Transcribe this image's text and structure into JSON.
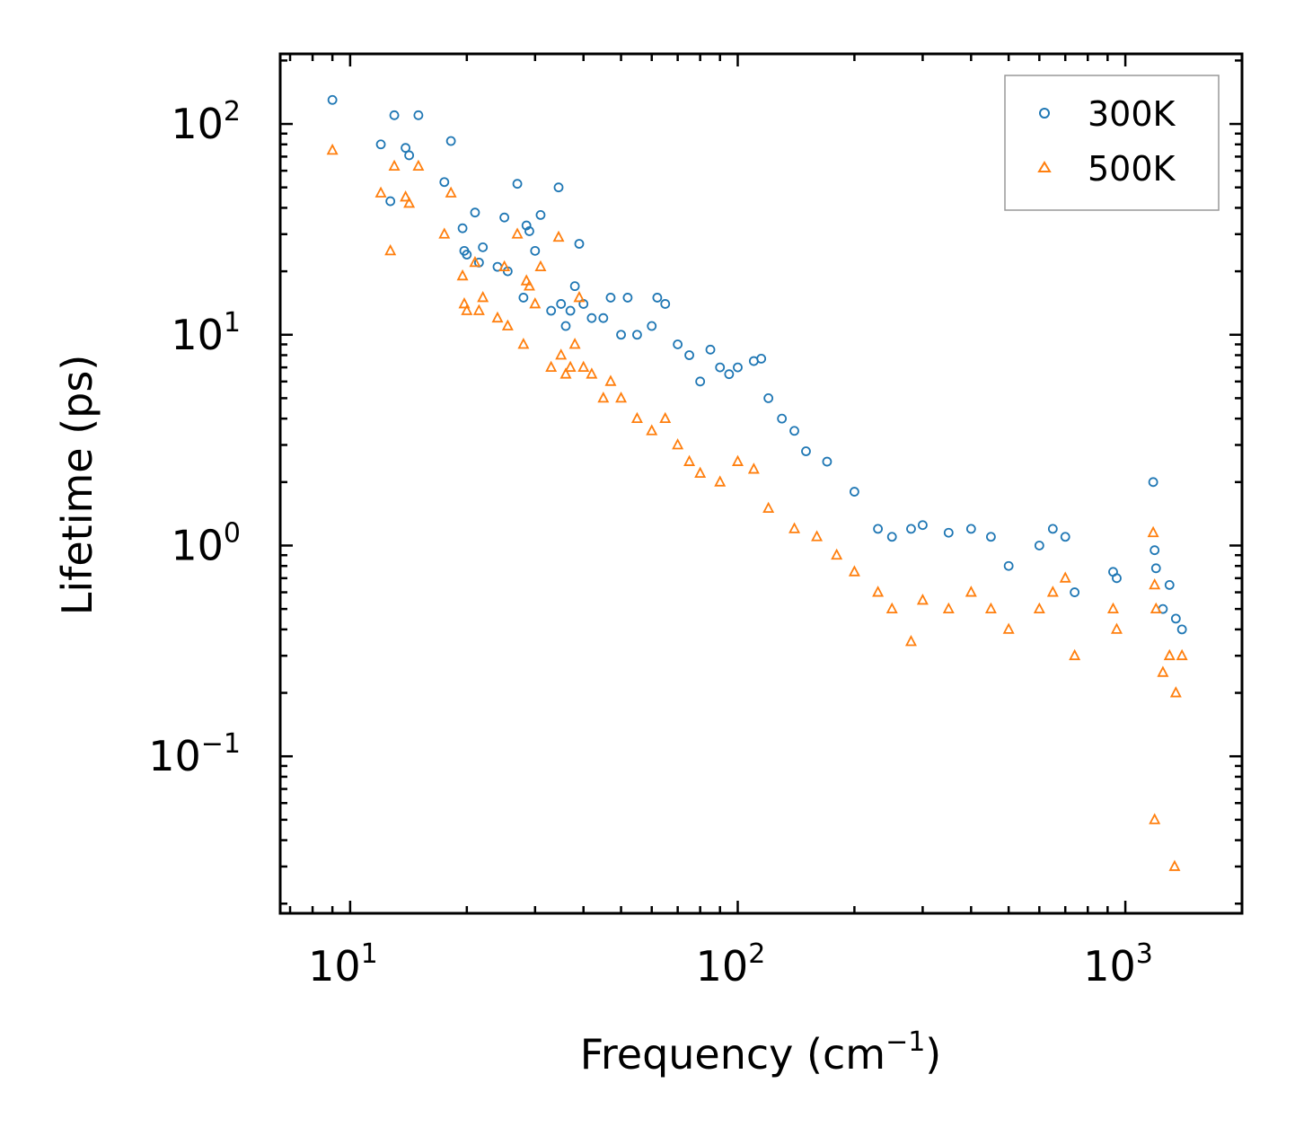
{
  "chart_data": {
    "type": "scatter",
    "xscale": "log",
    "yscale": "log",
    "xlabel": "Frequency (cm",
    "xlabel_sup": "−1",
    "xlabel_close": ")",
    "ylabel": "Lifetime (ps)",
    "xlim": [
      6.6,
      2000
    ],
    "ylim": [
      0.018,
      215
    ],
    "legend_position": "top-right",
    "xticks": [
      {
        "base": "10",
        "exp": "1",
        "value": 10
      },
      {
        "base": "10",
        "exp": "2",
        "value": 100
      },
      {
        "base": "10",
        "exp": "3",
        "value": 1000
      }
    ],
    "yticks": [
      {
        "base": "10",
        "exp": "2",
        "value": 100
      },
      {
        "base": "10",
        "exp": "1",
        "value": 10
      },
      {
        "base": "10",
        "exp": "0",
        "value": 1
      },
      {
        "base": "10",
        "exp": "−1",
        "value": 0.1
      }
    ],
    "series": [
      {
        "name": "300K",
        "color": "#1f77b4",
        "marker": "circle",
        "points": [
          [
            9,
            130
          ],
          [
            12,
            80
          ],
          [
            12.7,
            43
          ],
          [
            13,
            110
          ],
          [
            13.9,
            77
          ],
          [
            14.2,
            71
          ],
          [
            15,
            110
          ],
          [
            17.5,
            53
          ],
          [
            18.2,
            83
          ],
          [
            19.5,
            32
          ],
          [
            19.7,
            25
          ],
          [
            20,
            24
          ],
          [
            21,
            38
          ],
          [
            21.5,
            22
          ],
          [
            22,
            26
          ],
          [
            24,
            21
          ],
          [
            25,
            36
          ],
          [
            25.5,
            20
          ],
          [
            27,
            52
          ],
          [
            28,
            15
          ],
          [
            28.5,
            33
          ],
          [
            29,
            31
          ],
          [
            30,
            25
          ],
          [
            31,
            37
          ],
          [
            33,
            13
          ],
          [
            34.5,
            50
          ],
          [
            35,
            14
          ],
          [
            36,
            11
          ],
          [
            37,
            13
          ],
          [
            38,
            17
          ],
          [
            39,
            27
          ],
          [
            40,
            14
          ],
          [
            42,
            12
          ],
          [
            45,
            12
          ],
          [
            47,
            15
          ],
          [
            50,
            10
          ],
          [
            52,
            15
          ],
          [
            55,
            10
          ],
          [
            60,
            11
          ],
          [
            62,
            15
          ],
          [
            65,
            14
          ],
          [
            70,
            9
          ],
          [
            75,
            8
          ],
          [
            80,
            6
          ],
          [
            85,
            8.5
          ],
          [
            90,
            7
          ],
          [
            95,
            6.5
          ],
          [
            100,
            7
          ],
          [
            110,
            7.5
          ],
          [
            115,
            7.7
          ],
          [
            120,
            5
          ],
          [
            130,
            4
          ],
          [
            140,
            3.5
          ],
          [
            150,
            2.8
          ],
          [
            170,
            2.5
          ],
          [
            200,
            1.8
          ],
          [
            230,
            1.2
          ],
          [
            250,
            1.1
          ],
          [
            280,
            1.2
          ],
          [
            300,
            1.25
          ],
          [
            350,
            1.15
          ],
          [
            400,
            1.2
          ],
          [
            450,
            1.1
          ],
          [
            500,
            0.8
          ],
          [
            600,
            1.0
          ],
          [
            650,
            1.2
          ],
          [
            700,
            1.1
          ],
          [
            740,
            0.6
          ],
          [
            930,
            0.75
          ],
          [
            950,
            0.7
          ],
          [
            1180,
            2.0
          ],
          [
            1190,
            0.95
          ],
          [
            1200,
            0.78
          ],
          [
            1250,
            0.5
          ],
          [
            1300,
            0.65
          ],
          [
            1350,
            0.45
          ],
          [
            1400,
            0.4
          ]
        ]
      },
      {
        "name": "500K",
        "color": "#ff7f0e",
        "marker": "triangle",
        "points": [
          [
            9,
            75
          ],
          [
            12,
            47
          ],
          [
            12.7,
            25
          ],
          [
            13,
            63
          ],
          [
            13.9,
            45
          ],
          [
            14.2,
            42
          ],
          [
            15,
            63
          ],
          [
            17.5,
            30
          ],
          [
            18.2,
            47
          ],
          [
            19.5,
            19
          ],
          [
            19.7,
            14
          ],
          [
            20,
            13
          ],
          [
            21,
            22
          ],
          [
            21.5,
            13
          ],
          [
            22,
            15
          ],
          [
            24,
            12
          ],
          [
            25,
            21
          ],
          [
            25.5,
            11
          ],
          [
            27,
            30
          ],
          [
            28,
            9
          ],
          [
            28.5,
            18
          ],
          [
            29,
            17
          ],
          [
            30,
            14
          ],
          [
            31,
            21
          ],
          [
            33,
            7
          ],
          [
            34.5,
            29
          ],
          [
            35,
            8
          ],
          [
            36,
            6.5
          ],
          [
            37,
            7
          ],
          [
            38,
            9
          ],
          [
            39,
            15
          ],
          [
            40,
            7
          ],
          [
            42,
            6.5
          ],
          [
            45,
            5
          ],
          [
            47,
            6
          ],
          [
            50,
            5
          ],
          [
            55,
            4
          ],
          [
            60,
            3.5
          ],
          [
            65,
            4
          ],
          [
            70,
            3
          ],
          [
            75,
            2.5
          ],
          [
            80,
            2.2
          ],
          [
            90,
            2
          ],
          [
            100,
            2.5
          ],
          [
            110,
            2.3
          ],
          [
            120,
            1.5
          ],
          [
            140,
            1.2
          ],
          [
            160,
            1.1
          ],
          [
            180,
            0.9
          ],
          [
            200,
            0.75
          ],
          [
            230,
            0.6
          ],
          [
            250,
            0.5
          ],
          [
            280,
            0.35
          ],
          [
            300,
            0.55
          ],
          [
            350,
            0.5
          ],
          [
            400,
            0.6
          ],
          [
            450,
            0.5
          ],
          [
            500,
            0.4
          ],
          [
            600,
            0.5
          ],
          [
            650,
            0.6
          ],
          [
            700,
            0.7
          ],
          [
            740,
            0.3
          ],
          [
            930,
            0.5
          ],
          [
            950,
            0.4
          ],
          [
            1180,
            1.15
          ],
          [
            1190,
            0.65
          ],
          [
            1200,
            0.5
          ],
          [
            1250,
            0.25
          ],
          [
            1300,
            0.3
          ],
          [
            1350,
            0.2
          ],
          [
            1400,
            0.3
          ],
          [
            1190,
            0.05
          ],
          [
            1340,
            0.03
          ]
        ]
      }
    ]
  }
}
